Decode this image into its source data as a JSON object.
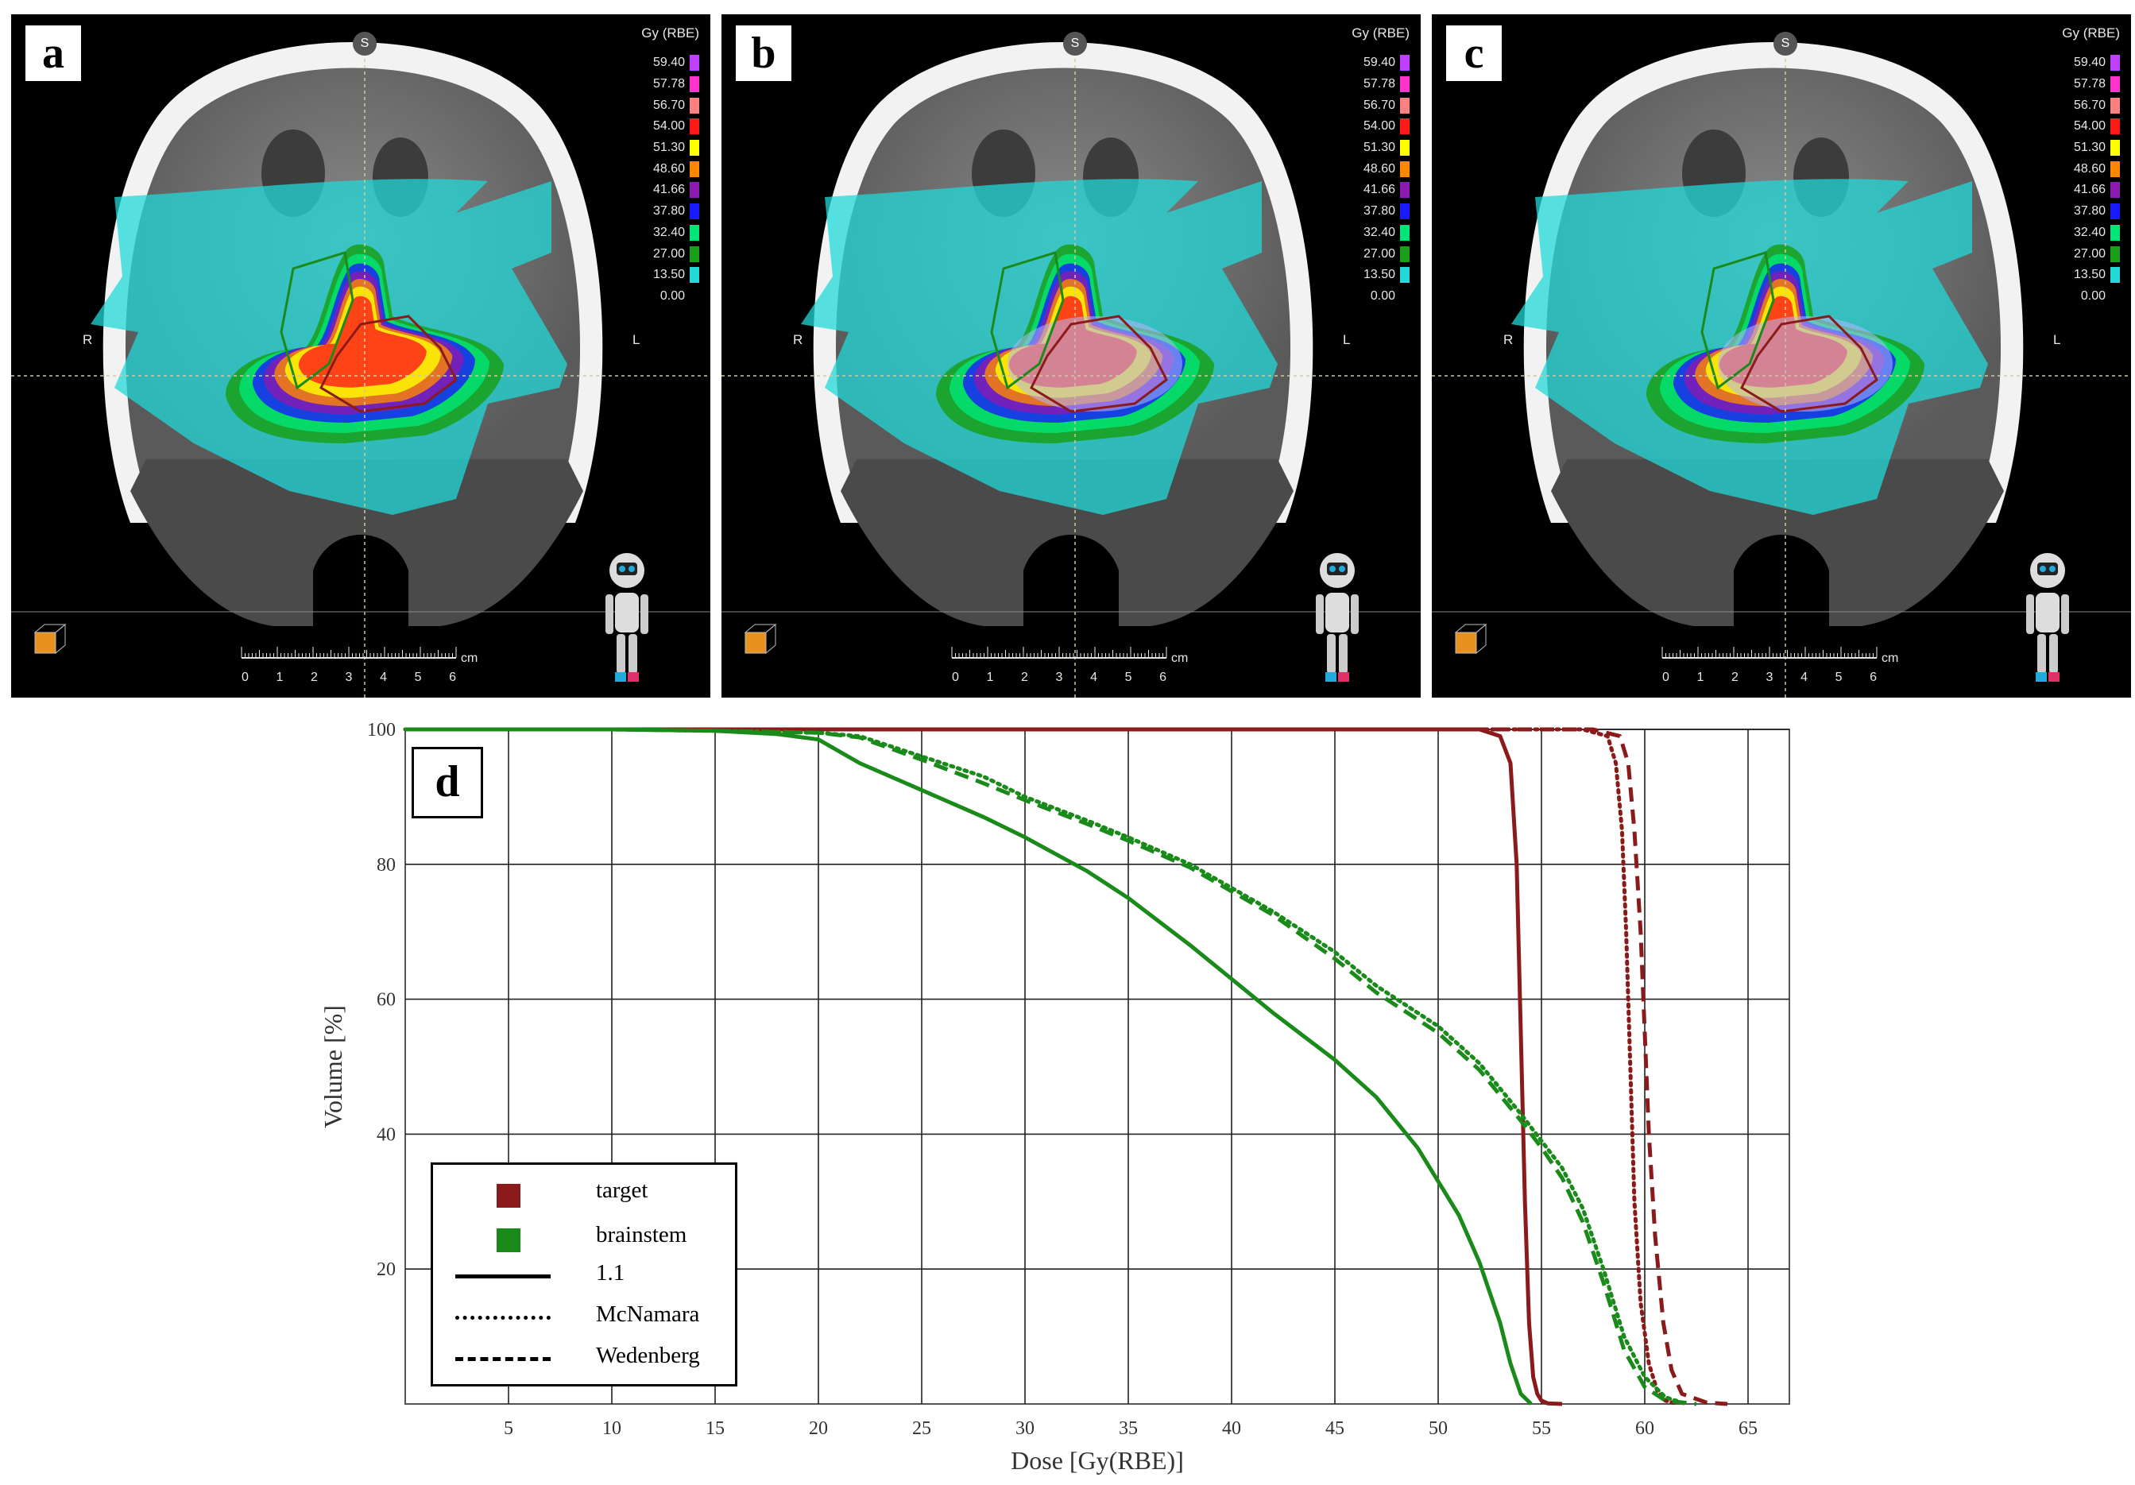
{
  "panels": [
    {
      "letter": "a",
      "legend_title": "Gy (RBE)",
      "orient_s": "S",
      "orient_r": "R",
      "orient_l": "L",
      "scale_unit": "cm"
    },
    {
      "letter": "b",
      "legend_title": "Gy (RBE)",
      "orient_s": "S",
      "orient_r": "R",
      "orient_l": "L",
      "scale_unit": "cm"
    },
    {
      "letter": "c",
      "legend_title": "Gy (RBE)",
      "orient_s": "S",
      "orient_r": "R",
      "orient_l": "L",
      "scale_unit": "cm"
    }
  ],
  "dose_legend": [
    {
      "value": "59.40",
      "color": "#c040ff"
    },
    {
      "value": "57.78",
      "color": "#ff33cc"
    },
    {
      "value": "56.70",
      "color": "#ff8080"
    },
    {
      "value": "54.00",
      "color": "#ff1a1a"
    },
    {
      "value": "51.30",
      "color": "#ffff00"
    },
    {
      "value": "48.60",
      "color": "#ff8800"
    },
    {
      "value": "41.66",
      "color": "#8a1ab0"
    },
    {
      "value": "37.80",
      "color": "#1a1aff"
    },
    {
      "value": "32.40",
      "color": "#00e676"
    },
    {
      "value": "27.00",
      "color": "#18a018"
    },
    {
      "value": "13.50",
      "color": "#22d8d8"
    },
    {
      "value": "0.00",
      "color": "#000000"
    }
  ],
  "scale_ticks": [
    "0",
    "1",
    "2",
    "3",
    "4",
    "5",
    "6"
  ],
  "chart_label": "d",
  "chart_data": {
    "type": "line",
    "xlabel": "Dose [Gy(RBE)]",
    "ylabel": "Volume [%]",
    "xlim": [
      0,
      67
    ],
    "ylim": [
      0,
      100
    ],
    "xticks": [
      5,
      10,
      15,
      20,
      25,
      30,
      35,
      40,
      45,
      50,
      55,
      60,
      65
    ],
    "yticks": [
      20,
      40,
      60,
      80,
      100
    ],
    "grid": true,
    "legend_position": "lower-left",
    "legend": [
      {
        "label": "target",
        "kind": "swatch",
        "color": "#8b1a1a"
      },
      {
        "label": "brainstem",
        "kind": "swatch",
        "color": "#1a8a1a"
      },
      {
        "label": "1.1",
        "kind": "solid"
      },
      {
        "label": "McNamara",
        "kind": "dotted"
      },
      {
        "label": "Wedenberg",
        "kind": "dashed"
      }
    ],
    "series": [
      {
        "structure": "target",
        "model": "1.1",
        "style": "solid",
        "color": "#8b1a1a",
        "x": [
          0,
          52.0,
          53.0,
          53.5,
          53.8,
          54.0,
          54.2,
          54.4,
          54.6,
          54.8,
          55.0,
          55.3,
          56.0
        ],
        "y": [
          100,
          100,
          99,
          95,
          80,
          55,
          30,
          12,
          4,
          1.5,
          0.5,
          0.1,
          0
        ]
      },
      {
        "structure": "target",
        "model": "McNamara",
        "style": "dotted",
        "color": "#8b1a1a",
        "x": [
          0,
          57.0,
          58.2,
          58.6,
          58.9,
          59.1,
          59.3,
          59.5,
          59.8,
          60.2,
          60.6,
          61.0,
          61.6
        ],
        "y": [
          100,
          100,
          99,
          95,
          85,
          70,
          50,
          30,
          15,
          6,
          2,
          0.5,
          0
        ]
      },
      {
        "structure": "target",
        "model": "Wedenberg",
        "style": "dashed",
        "color": "#8b1a1a",
        "x": [
          0,
          57.5,
          58.8,
          59.2,
          59.5,
          59.8,
          60.0,
          60.2,
          60.5,
          60.9,
          61.3,
          61.8,
          63.0,
          64.0
        ],
        "y": [
          100,
          100,
          99,
          95,
          85,
          70,
          55,
          40,
          25,
          12,
          5,
          1.5,
          0.2,
          0
        ]
      },
      {
        "structure": "brainstem",
        "model": "1.1",
        "style": "solid",
        "color": "#1a8a1a",
        "x": [
          0,
          10,
          15,
          18,
          20,
          22,
          25,
          28,
          30,
          33,
          35,
          38,
          40,
          42,
          45,
          47,
          49,
          50,
          51,
          52,
          53,
          53.5,
          54,
          54.5
        ],
        "y": [
          100,
          100,
          99.8,
          99.3,
          98.5,
          95,
          91,
          87,
          84,
          79,
          75,
          68,
          63,
          58,
          51,
          45.5,
          38,
          33,
          28,
          21,
          12,
          6,
          1.5,
          0
        ]
      },
      {
        "structure": "brainstem",
        "model": "McNamara",
        "style": "dotted",
        "color": "#1a8a1a",
        "x": [
          0,
          10,
          15,
          20,
          22,
          25,
          28,
          30,
          33,
          35,
          38,
          40,
          42,
          45,
          47,
          50,
          52,
          54,
          55,
          56,
          57,
          58,
          59,
          60,
          61,
          62
        ],
        "y": [
          100,
          100,
          99.8,
          99.5,
          99,
          96,
          93,
          90,
          86.5,
          84,
          80,
          76.5,
          73,
          67,
          62,
          56,
          50.5,
          43,
          39,
          35,
          29,
          20,
          10,
          4,
          1,
          0
        ]
      },
      {
        "structure": "brainstem",
        "model": "Wedenberg",
        "style": "dashed",
        "color": "#1a8a1a",
        "x": [
          0,
          10,
          15,
          20,
          22,
          25,
          28,
          30,
          33,
          35,
          38,
          40,
          42,
          45,
          47,
          50,
          52,
          54,
          55,
          56,
          57,
          58,
          59,
          60,
          61,
          62.5
        ],
        "y": [
          100,
          100,
          99.8,
          99.5,
          98.8,
          95.5,
          92,
          89.5,
          86,
          83.5,
          79.5,
          76,
          72.5,
          66,
          61,
          55,
          49.5,
          42,
          38,
          33.5,
          27,
          18,
          8,
          2.5,
          0.5,
          0
        ]
      }
    ]
  }
}
